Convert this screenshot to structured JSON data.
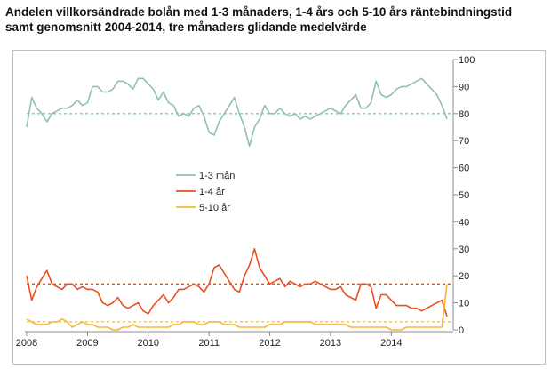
{
  "title": {
    "line1": "Andelen villkorsändrade bolån med 1-3 månaders, 1-4 års och 5-10 års räntebindningstid",
    "line2": "samt genomsnitt 2004-2014, tre månaders glidande medelvärde"
  },
  "chart_data": {
    "type": "line",
    "title": "Andelen villkorsändrade bolån med 1-3 månaders, 1-4 års och 5-10 års räntebindningstid samt genomsnitt 2004-2014, tre månaders glidande medelvärde",
    "xlabel": "",
    "ylabel": "",
    "x_start": "2008-01",
    "x_end": "2014-12",
    "x_ticks": [
      "2008",
      "2009",
      "2010",
      "2011",
      "2012",
      "2013",
      "2014"
    ],
    "ylim": [
      0,
      100
    ],
    "y_ticks": [
      "0",
      "10",
      "20",
      "30",
      "40",
      "50",
      "60",
      "70",
      "80",
      "90",
      "100"
    ],
    "y_axis_side": "right",
    "grid": false,
    "legend_position": "center-left",
    "series": [
      {
        "name": "1-3 mån",
        "color": "#8fc3a8",
        "average": 80,
        "values": [
          75,
          86,
          82,
          80,
          77,
          80,
          81,
          82,
          82,
          83,
          85,
          83,
          84,
          90,
          90,
          88,
          88,
          89,
          92,
          92,
          91,
          89,
          93,
          93,
          91,
          89,
          85,
          88,
          84,
          83,
          79,
          80,
          79,
          82,
          83,
          79,
          73,
          72,
          77,
          80,
          83,
          86,
          80,
          75,
          68,
          75,
          78,
          83,
          80,
          80,
          82,
          80,
          79,
          80,
          78,
          79,
          78,
          79,
          80,
          81,
          82,
          81,
          80,
          83,
          85,
          87,
          82,
          82,
          84,
          92,
          87,
          86,
          87,
          89,
          90,
          90,
          91,
          92,
          93,
          91,
          89,
          87,
          83,
          78
        ]
      },
      {
        "name": "1-4 år",
        "color": "#e8501d",
        "average": 17,
        "values": [
          20,
          11,
          16,
          19,
          22,
          17,
          16,
          15,
          17,
          17,
          15,
          16,
          15,
          15,
          14,
          10,
          9,
          10,
          12,
          9,
          8,
          9,
          10,
          7,
          6,
          9,
          11,
          13,
          10,
          12,
          15,
          15,
          16,
          17,
          16,
          14,
          17,
          23,
          24,
          21,
          18,
          15,
          14,
          20,
          24,
          30,
          23,
          20,
          17,
          18,
          19,
          16,
          18,
          17,
          16,
          17,
          17,
          18,
          17,
          16,
          15,
          15,
          16,
          13,
          12,
          11,
          17,
          17,
          16,
          8,
          13,
          13,
          11,
          9,
          9,
          9,
          8,
          8,
          7,
          8,
          9,
          10,
          11,
          5
        ]
      },
      {
        "name": "5-10 år",
        "color": "#f4b83a",
        "average": 3,
        "values": [
          4,
          3,
          2,
          2,
          2,
          3,
          3,
          4,
          3,
          1,
          2,
          3,
          2,
          2,
          1,
          1,
          1,
          0,
          0,
          1,
          1,
          2,
          1,
          1,
          1,
          1,
          1,
          1,
          1,
          2,
          2,
          3,
          3,
          3,
          2,
          2,
          3,
          3,
          3,
          2,
          2,
          2,
          1,
          1,
          1,
          1,
          1,
          1,
          2,
          2,
          2,
          3,
          3,
          3,
          3,
          3,
          3,
          2,
          2,
          2,
          2,
          2,
          2,
          2,
          1,
          1,
          1,
          1,
          1,
          1,
          1,
          1,
          0,
          0,
          0,
          1,
          1,
          1,
          1,
          1,
          1,
          1,
          1,
          17
        ]
      }
    ]
  }
}
